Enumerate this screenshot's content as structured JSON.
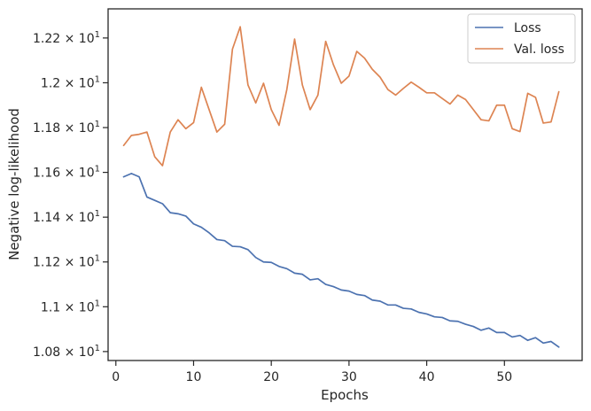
{
  "chart_data": {
    "type": "line",
    "xlabel": "Epochs",
    "ylabel": "Negative log-likelihood",
    "xlim": [
      -1,
      60
    ],
    "ylim": [
      10.76,
      12.33
    ],
    "xticks": [
      0,
      10,
      20,
      30,
      40,
      50
    ],
    "xtick_labels": [
      "0",
      "10",
      "20",
      "30",
      "40",
      "50"
    ],
    "yticks": [
      10.8,
      11.0,
      11.2,
      11.4,
      11.6,
      11.8,
      12.0,
      12.2
    ],
    "ytick_labels": [
      {
        "mant": "1.08",
        "exp": "1"
      },
      {
        "mant": "1.1",
        "exp": "1"
      },
      {
        "mant": "1.12",
        "exp": "1"
      },
      {
        "mant": "1.14",
        "exp": "1"
      },
      {
        "mant": "1.16",
        "exp": "1"
      },
      {
        "mant": "1.18",
        "exp": "1"
      },
      {
        "mant": "1.2",
        "exp": "1"
      },
      {
        "mant": "1.22",
        "exp": "1"
      }
    ],
    "grid": false,
    "legend_position": "top-right",
    "x": [
      1,
      2,
      3,
      4,
      5,
      6,
      7,
      8,
      9,
      10,
      11,
      12,
      13,
      14,
      15,
      16,
      17,
      18,
      19,
      20,
      21,
      22,
      23,
      24,
      25,
      26,
      27,
      28,
      29,
      30,
      31,
      32,
      33,
      34,
      35,
      36,
      37,
      38,
      39,
      40,
      41,
      42,
      43,
      44,
      45,
      46,
      47,
      48,
      49,
      50,
      51,
      52,
      53,
      54,
      55,
      56,
      57
    ],
    "series": [
      {
        "name": "Loss",
        "color": "#4c72b0",
        "values": [
          11.58,
          11.595,
          11.58,
          11.49,
          11.475,
          11.46,
          11.42,
          11.415,
          11.405,
          11.37,
          11.355,
          11.33,
          11.3,
          11.295,
          11.27,
          11.268,
          11.255,
          11.22,
          11.2,
          11.198,
          11.18,
          11.17,
          11.15,
          11.145,
          11.12,
          11.125,
          11.1,
          11.09,
          11.075,
          11.07,
          11.055,
          11.05,
          11.03,
          11.025,
          11.008,
          11.008,
          10.993,
          10.99,
          10.975,
          10.968,
          10.955,
          10.952,
          10.937,
          10.935,
          10.922,
          10.912,
          10.895,
          10.905,
          10.885,
          10.885,
          10.865,
          10.872,
          10.85,
          10.862,
          10.838,
          10.845,
          10.82
        ]
      },
      {
        "name": "Val. loss",
        "color": "#dd8452",
        "values": [
          11.72,
          11.765,
          11.77,
          11.78,
          11.67,
          11.63,
          11.78,
          11.835,
          11.795,
          11.822,
          11.98,
          11.88,
          11.78,
          11.815,
          12.15,
          12.25,
          11.99,
          11.91,
          11.998,
          11.88,
          11.81,
          11.97,
          12.195,
          11.99,
          11.88,
          11.945,
          12.185,
          12.08,
          11.998,
          12.03,
          12.14,
          12.11,
          12.06,
          12.025,
          11.97,
          11.945,
          11.975,
          12.003,
          11.98,
          11.955,
          11.955,
          11.93,
          11.905,
          11.945,
          11.925,
          11.88,
          11.835,
          11.83,
          11.9,
          11.9,
          11.795,
          11.782,
          11.953,
          11.935,
          11.82,
          11.825,
          11.96
        ]
      }
    ]
  }
}
